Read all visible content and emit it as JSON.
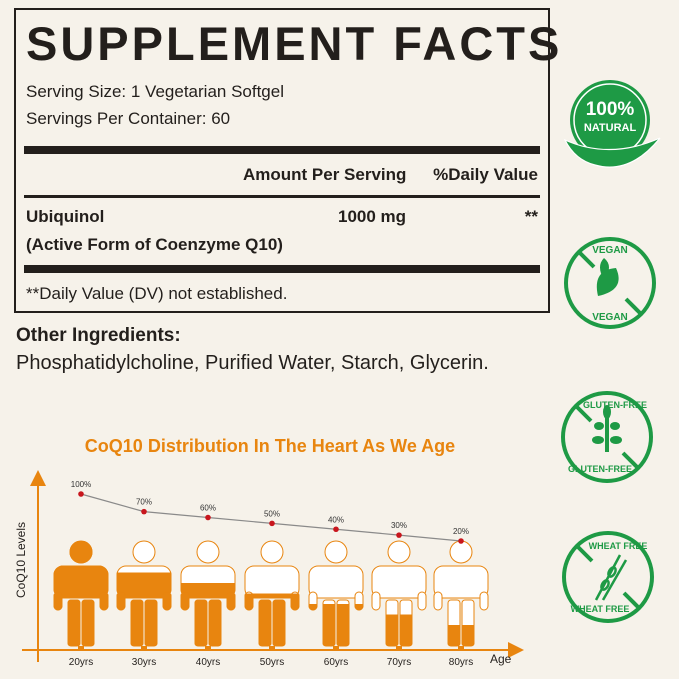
{
  "facts": {
    "title": "SUPPLEMENT FACTS",
    "serving_size": "Serving Size: 1 Vegetarian Softgel",
    "servings_per_container": "Servings Per Container: 60",
    "col_amount": "Amount Per Serving",
    "col_dv": "%Daily Value",
    "ingredient_name": "Ubiquinol",
    "ingredient_sub": "(Active Form of Coenzyme Q10)",
    "ingredient_amount": "1000 mg",
    "ingredient_dv": "**",
    "footnote": "**Daily Value (DV) not established."
  },
  "other": {
    "heading": "Other Ingredients:",
    "text": "Phosphatidylcholine, Purified Water, Starch, Glycerin."
  },
  "badges": [
    {
      "icon": "leaf-natural-icon",
      "text": [
        "100%",
        "NATURAL"
      ]
    },
    {
      "icon": "vegan-leaf-icon",
      "text": [
        "VEGAN",
        "VEGAN"
      ]
    },
    {
      "icon": "gluten-free-grain-icon",
      "text": [
        "GLUTEN-FREE",
        "GLUTEN-FREE"
      ]
    },
    {
      "icon": "wheat-free-icon",
      "text": [
        "WHEAT FREE",
        "WHEAT FREE"
      ]
    }
  ],
  "colors": {
    "accent": "#e8850f",
    "green": "#1e9a45",
    "point": "#c8161d",
    "line": "#8a8a8a"
  },
  "chart_data": {
    "type": "line",
    "title": "CoQ10 Distribution In The Heart As We Age",
    "xlabel": "Age",
    "ylabel": "CoQ10 Levels",
    "categories": [
      "20yrs",
      "30yrs",
      "40yrs",
      "50yrs",
      "60yrs",
      "70yrs",
      "80yrs"
    ],
    "values": [
      100,
      70,
      60,
      50,
      40,
      30,
      20
    ],
    "data_labels": [
      "100%",
      "70%",
      "60%",
      "50%",
      "40%",
      "30%",
      "20%"
    ],
    "grid": false
  }
}
